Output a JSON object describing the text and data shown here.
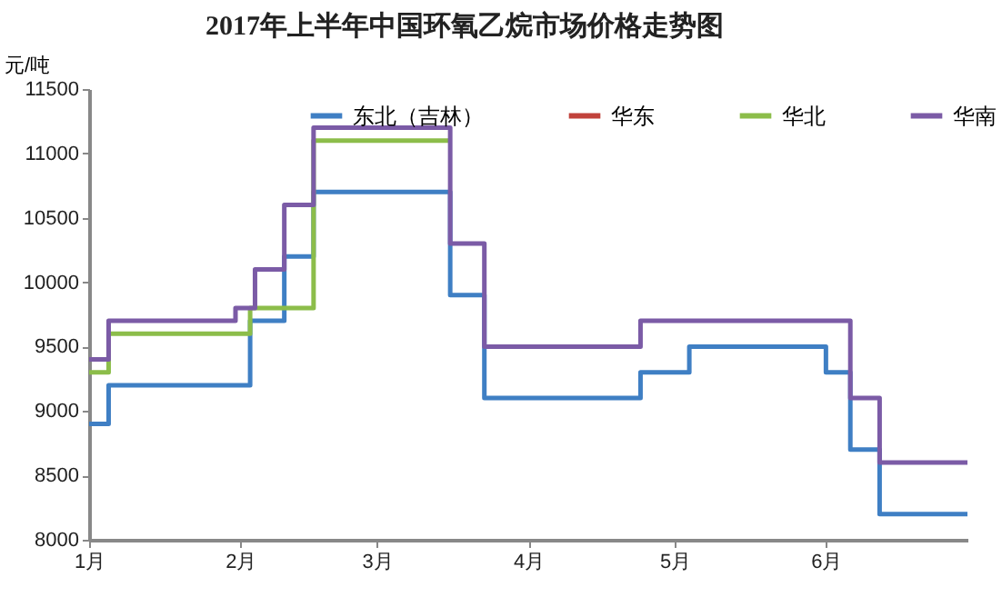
{
  "chart_data": {
    "type": "step",
    "title": "2017年上半年中国环氧乙烷市场价格走势图",
    "ylabel": "元/吨",
    "xlim": [
      "2017-01-01",
      "2017-06-30"
    ],
    "xticks": [
      {
        "value": "2017-01-01",
        "label": "1月"
      },
      {
        "value": "2017-02-01",
        "label": "2月"
      },
      {
        "value": "2017-03-01",
        "label": "3月"
      },
      {
        "value": "2017-04-01",
        "label": "4月"
      },
      {
        "value": "2017-05-01",
        "label": "5月"
      },
      {
        "value": "2017-06-01",
        "label": "6月"
      }
    ],
    "ylim": [
      8000,
      11500
    ],
    "yticks": [
      8000,
      8500,
      9000,
      9500,
      10000,
      10500,
      11000,
      11500
    ],
    "grid": false,
    "legend": "top",
    "line_style": "solid",
    "marker": "none",
    "series": [
      {
        "name": "东北（吉林）",
        "color": "#3f7fc4",
        "x": [
          "2017-01-01",
          "2017-01-05",
          "2017-02-03",
          "2017-02-10",
          "2017-02-16",
          "2017-03-16",
          "2017-03-23",
          "2017-04-24",
          "2017-05-04",
          "2017-06-01",
          "2017-06-06",
          "2017-06-12",
          "2017-06-30"
        ],
        "values": [
          8900,
          9200,
          9700,
          10200,
          10700,
          9900,
          9100,
          9300,
          9500,
          9300,
          8700,
          8200,
          8200
        ]
      },
      {
        "name": "华东",
        "color": "#c1423b"
      },
      {
        "name": "华北",
        "color": "#8cbd4a",
        "x": [
          "2017-01-01",
          "2017-01-05",
          "2017-02-03",
          "2017-02-16",
          "2017-03-16"
        ],
        "values": [
          9300,
          9600,
          9800,
          11100,
          11100
        ]
      },
      {
        "name": "华南",
        "color": "#7b5ba6",
        "x": [
          "2017-01-01",
          "2017-01-05",
          "2017-01-31",
          "2017-02-04",
          "2017-02-10",
          "2017-02-16",
          "2017-03-16",
          "2017-03-23",
          "2017-04-24",
          "2017-06-06",
          "2017-06-12",
          "2017-06-30"
        ],
        "values": [
          9400,
          9700,
          9800,
          10100,
          10600,
          11200,
          10300,
          9500,
          9700,
          9100,
          8600,
          8600
        ]
      }
    ]
  }
}
